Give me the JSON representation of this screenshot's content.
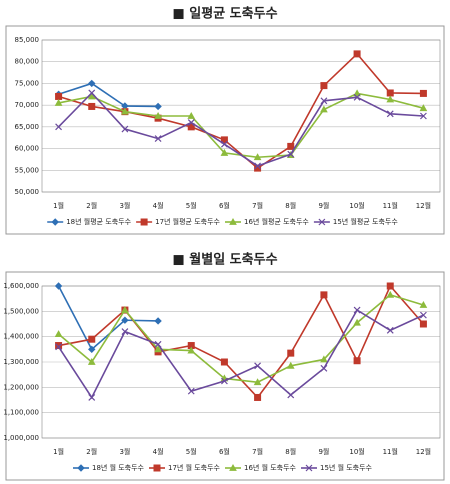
{
  "chart_data": [
    {
      "type": "line",
      "title": "■ 일평균 도축두수",
      "legend": "bottom",
      "grid": true,
      "categories": [
        "1월",
        "2월",
        "3월",
        "4월",
        "5월",
        "6월",
        "7월",
        "8월",
        "9월",
        "10월",
        "11월",
        "12월"
      ],
      "ylim": [
        50000,
        85000
      ],
      "yticks": [
        {
          "value": 50000,
          "label": "50,000"
        },
        {
          "value": 55000,
          "label": "55,000"
        },
        {
          "value": 60000,
          "label": "60,000"
        },
        {
          "value": 65000,
          "label": "65,000"
        },
        {
          "value": 70000,
          "label": "70,000"
        },
        {
          "value": 75000,
          "label": "75,000"
        },
        {
          "value": 80000,
          "label": "80,000"
        },
        {
          "value": 85000,
          "label": "85,000"
        }
      ],
      "series": [
        {
          "name": "18년 월평균 도축두수",
          "color": "#2e6fb5",
          "marker": "diamond",
          "values": [
            72500,
            75000,
            69800,
            69700,
            null,
            null,
            null,
            null,
            null,
            null,
            null,
            null
          ]
        },
        {
          "name": "17년 월평균 도축두수",
          "color": "#c0392b",
          "marker": "square",
          "values": [
            72000,
            69700,
            68500,
            67000,
            65000,
            62000,
            55500,
            60500,
            74500,
            81800,
            72800,
            72700
          ]
        },
        {
          "name": "16년 월평균 도축두수",
          "color": "#8dbb3c",
          "marker": "triangle",
          "values": [
            70500,
            72000,
            68500,
            67500,
            67500,
            59000,
            58000,
            58500,
            69000,
            72700,
            71300,
            69300
          ]
        },
        {
          "name": "15년 월평균 도축두수",
          "color": "#6a4a9c",
          "marker": "x",
          "values": [
            65000,
            72800,
            64500,
            62300,
            66000,
            61000,
            56000,
            58700,
            71000,
            71800,
            68000,
            67500
          ]
        }
      ]
    },
    {
      "type": "line",
      "title": "■ 월별일 도축두수",
      "legend": "bottom",
      "grid": true,
      "categories": [
        "1월",
        "2월",
        "3월",
        "4월",
        "5월",
        "6월",
        "7월",
        "8월",
        "9월",
        "10월",
        "11월",
        "12월"
      ],
      "ylim": [
        1000000,
        1600000
      ],
      "yticks": [
        {
          "value": 1000000,
          "label": "1,000,000"
        },
        {
          "value": 1100000,
          "label": "1,100,000"
        },
        {
          "value": 1200000,
          "label": "1,200,000"
        },
        {
          "value": 1300000,
          "label": "1,300,000"
        },
        {
          "value": 1400000,
          "label": "1,400,000"
        },
        {
          "value": 1500000,
          "label": "1,500,000"
        },
        {
          "value": 1600000,
          "label": "1,600,000"
        }
      ],
      "series": [
        {
          "name": "18년 월 도축두수",
          "color": "#2e6fb5",
          "marker": "diamond",
          "values": [
            1600000,
            1350000,
            1465000,
            1462000,
            null,
            null,
            null,
            null,
            null,
            null,
            null,
            null
          ]
        },
        {
          "name": "17년 월 도축두수",
          "color": "#c0392b",
          "marker": "square",
          "values": [
            1365000,
            1390000,
            1505000,
            1340000,
            1365000,
            1300000,
            1160000,
            1335000,
            1565000,
            1305000,
            1600000,
            1450000
          ]
        },
        {
          "name": "16년 월 도축두수",
          "color": "#8dbb3c",
          "marker": "triangle",
          "values": [
            1410000,
            1300000,
            1505000,
            1350000,
            1345000,
            1235000,
            1220000,
            1285000,
            1310000,
            1455000,
            1565000,
            1525000
          ]
        },
        {
          "name": "15년 월 도축두수",
          "color": "#6a4a9c",
          "marker": "x",
          "values": [
            1360000,
            1160000,
            1420000,
            1370000,
            1185000,
            1225000,
            1285000,
            1170000,
            1275000,
            1505000,
            1425000,
            1485000
          ]
        }
      ]
    }
  ]
}
